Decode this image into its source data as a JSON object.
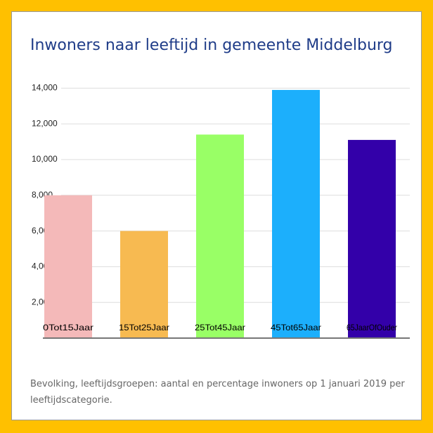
{
  "chart_data": {
    "type": "bar",
    "title": "Inwoners naar leeftijd in gemeente Middelburg",
    "categories": [
      "0Tot15Jaar",
      "15Tot25Jaar",
      "25Tot45Jaar",
      "45Tot65Jaar",
      "65JaarOfOuder"
    ],
    "values": [
      8000,
      6000,
      11400,
      13900,
      11100
    ],
    "colors": [
      "#f4b9b9",
      "#f7ba51",
      "#99ff66",
      "#1caffc",
      "#3300a9"
    ],
    "ylim": [
      0,
      15000
    ],
    "yticks": [
      {
        "value": 2000,
        "label": "2,000"
      },
      {
        "value": 4000,
        "label": "4,000"
      },
      {
        "value": 6000,
        "label": "6,000"
      },
      {
        "value": 8000,
        "label": "8,000"
      },
      {
        "value": 10000,
        "label": "10,000"
      },
      {
        "value": 12000,
        "label": "12,000"
      },
      {
        "value": 14000,
        "label": "14,000"
      }
    ],
    "grid": true,
    "caption": "Bevolking, leeftijdsgroepen: aantal en percentage inwoners op 1 januari 2019 per leeftijdscategorie."
  }
}
